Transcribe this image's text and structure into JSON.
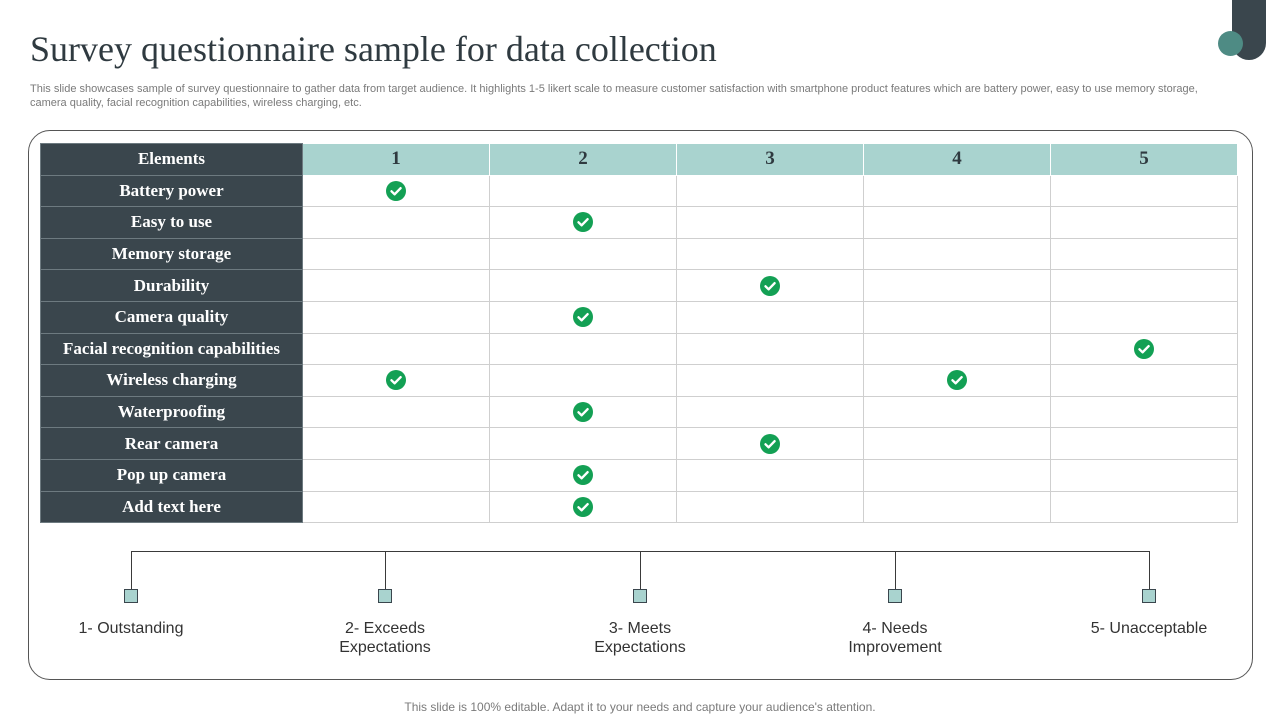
{
  "slide": {
    "title": "Survey questionnaire sample for data collection",
    "subtitle": "This slide showcases sample of survey questionnaire to gather data from target audience. It highlights 1-5 likert scale to measure customer satisfaction with smartphone product features which are battery power, easy to use memory storage, camera quality, facial recognition capabilities, wireless charging, etc.",
    "footer": "This slide is 100% editable. Adapt it to your needs and capture your audience's attention."
  },
  "table": {
    "header": "Elements",
    "scale": [
      "1",
      "2",
      "3",
      "4",
      "5"
    ],
    "rows": [
      {
        "label": "Battery power",
        "checks": [
          1
        ]
      },
      {
        "label": "Easy to use",
        "checks": [
          2
        ]
      },
      {
        "label": "Memory storage",
        "checks": []
      },
      {
        "label": "Durability",
        "checks": [
          3
        ]
      },
      {
        "label": "Camera quality",
        "checks": [
          2
        ]
      },
      {
        "label": "Facial recognition capabilities",
        "checks": [
          5
        ]
      },
      {
        "label": "Wireless charging",
        "checks": [
          1,
          4
        ]
      },
      {
        "label": "Waterproofing",
        "checks": [
          2
        ]
      },
      {
        "label": "Rear camera",
        "checks": [
          3
        ]
      },
      {
        "label": "Pop up camera",
        "checks": [
          2
        ]
      },
      {
        "label": "Add text here",
        "checks": [
          2
        ]
      }
    ]
  },
  "legend": [
    {
      "label": "1- Outstanding"
    },
    {
      "label": "2- Exceeds Expectations"
    },
    {
      "label": "3- Meets Expectations"
    },
    {
      "label": "4- Needs Improvement"
    },
    {
      "label": "5- Unacceptable"
    }
  ],
  "colors": {
    "dark": "#3a464d",
    "teal_light": "#a9d3cf",
    "accent": "#4e8b84",
    "check": "#13a054"
  }
}
